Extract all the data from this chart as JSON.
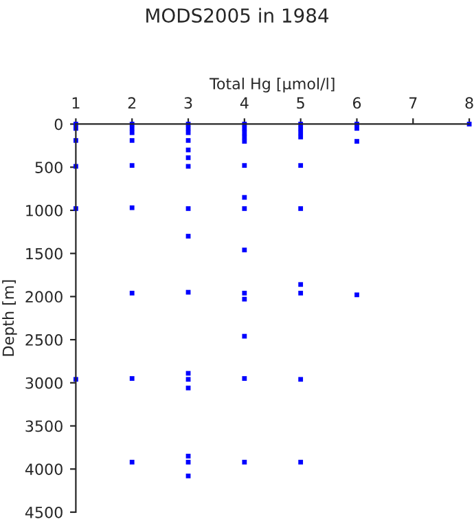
{
  "chart_data": {
    "type": "scatter",
    "title": "MODS2005 in 1984",
    "xlabel": "Total Hg [µmol/l]",
    "ylabel": "Depth [m]",
    "x": [
      1,
      1,
      1,
      1,
      1,
      1,
      2,
      2,
      2,
      2,
      2,
      2,
      2,
      2,
      2,
      3,
      3,
      3,
      3,
      3,
      3,
      3,
      3,
      3,
      3,
      3,
      3,
      3,
      3,
      3,
      3,
      4,
      4,
      4,
      4,
      4,
      4,
      4,
      4,
      4,
      4,
      4,
      4,
      4,
      4,
      5,
      5,
      5,
      5,
      5,
      5,
      5,
      5,
      5,
      5,
      6,
      6,
      6,
      6,
      8
    ],
    "series": [
      {
        "color": "#0000ff",
        "values": [
          0,
          50,
          190,
          490,
          980,
          2960,
          0,
          50,
          100,
          190,
          480,
          970,
          1960,
          2950,
          3920,
          0,
          50,
          100,
          190,
          300,
          390,
          490,
          980,
          1300,
          1950,
          2890,
          2960,
          3060,
          3850,
          3920,
          4080,
          0,
          50,
          100,
          150,
          200,
          480,
          850,
          980,
          1460,
          1960,
          2030,
          2460,
          2950,
          3920,
          0,
          50,
          100,
          150,
          480,
          980,
          1860,
          1960,
          2960,
          3920,
          0,
          50,
          200,
          1980,
          0
        ]
      }
    ],
    "xlim": [
      1,
      8
    ],
    "xticks": [
      1,
      2,
      3,
      4,
      5,
      6,
      7,
      8
    ],
    "ylim": [
      4500,
      0
    ],
    "yticks": [
      0,
      500,
      1000,
      1500,
      2000,
      2500,
      3000,
      3500,
      4000,
      4500
    ],
    "marker": "square",
    "grid": false,
    "legend": false
  }
}
